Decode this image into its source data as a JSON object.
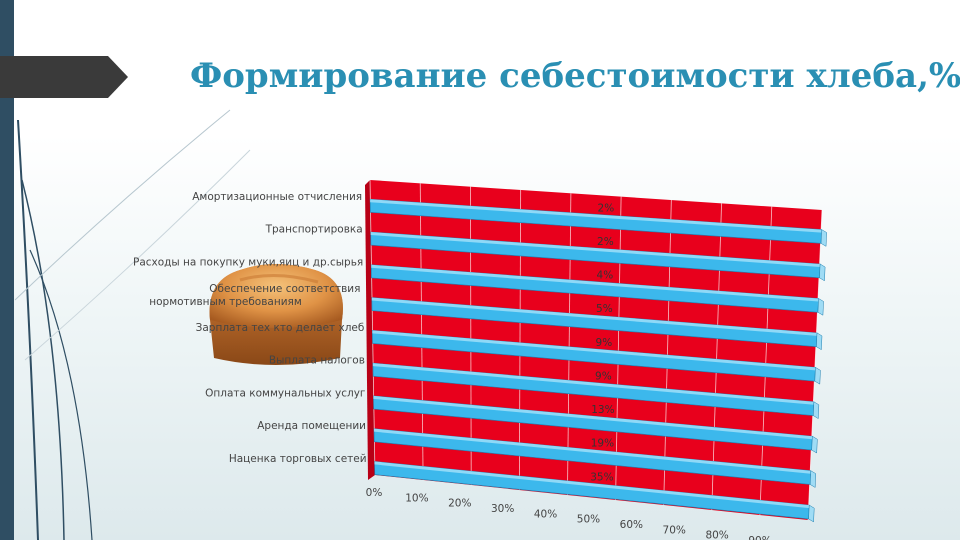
{
  "title": "Формирование себестоимости хлеба,%",
  "colors": {
    "accent": "#2a8fb3",
    "bar": "#3cb8ec",
    "bar_top": "#8fd9f7",
    "background_wall": "#e8001c",
    "side_bar": "#2f4e63",
    "tab": "#3a3a3a"
  },
  "chart_data": {
    "type": "bar",
    "orientation": "horizontal",
    "style": "3d",
    "categories": [
      "Наценка торговых сетей",
      "Аренда помещении",
      "Оплата коммунальных услуг",
      "Выплата налогов",
      "Зарплата тех кто делает хлеб",
      "Обеспечение соответствия  нормотивным требованиям",
      "Расходы на покупку муки,яиц и др.сырья",
      "Транспортировка",
      "Амортизационные  отчисления"
    ],
    "value_labels": [
      "35%",
      "19%",
      "13%",
      "9%",
      "9%",
      "5%",
      "4%",
      "2%",
      "2%"
    ],
    "values": [
      35,
      19,
      13,
      9,
      9,
      5,
      4,
      2,
      2
    ],
    "xticks": [
      "0%",
      "10%",
      "20%",
      "30%",
      "40%",
      "50%",
      "60%",
      "70%",
      "80%",
      "90%"
    ],
    "xlim": [
      0,
      100
    ],
    "grid": true,
    "legend": "none"
  }
}
